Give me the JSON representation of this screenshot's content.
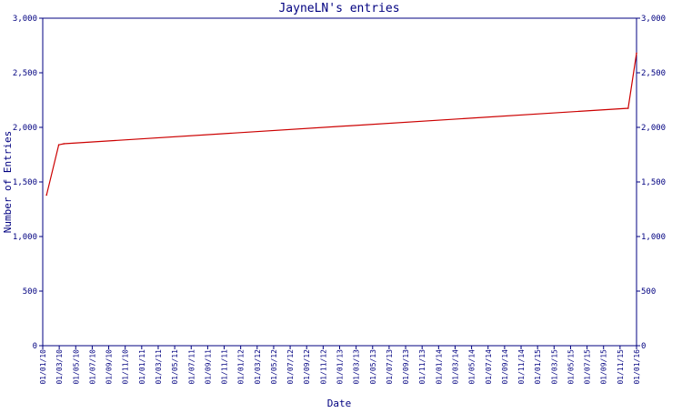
{
  "chart_data": {
    "type": "line",
    "title": "JayneLN's entries",
    "xlabel": "Date",
    "ylabel": "Number of Entries",
    "x_tick_labels": [
      "01/01/10",
      "01/03/10",
      "01/05/10",
      "01/07/10",
      "01/09/10",
      "01/11/10",
      "01/01/11",
      "01/03/11",
      "01/05/11",
      "01/07/11",
      "01/09/11",
      "01/11/11",
      "01/01/12",
      "01/03/12",
      "01/05/12",
      "01/07/12",
      "01/09/12",
      "01/11/12",
      "01/01/13",
      "01/03/13",
      "01/05/13",
      "01/07/13",
      "01/09/13",
      "01/11/13",
      "01/01/14",
      "01/03/14",
      "01/05/14",
      "01/07/14",
      "01/09/14",
      "01/11/14",
      "01/01/15",
      "01/03/15",
      "01/05/15",
      "01/07/15",
      "01/09/15",
      "01/11/15",
      "01/01/16"
    ],
    "y_tick_labels": [
      "0",
      "500",
      "1,000",
      "1,500",
      "2,000",
      "2,500",
      "3,000"
    ],
    "ylim": [
      0,
      3000
    ],
    "xlim": [
      "2010-01-01",
      "2016-01-01"
    ],
    "grid": false,
    "y_axis_both_sides": true,
    "line_color": "#cc0000",
    "axis_color": "#000080",
    "series": [
      {
        "x": [
          "2010-01-15",
          "2010-03-01",
          "2010-03-20",
          "2015-12-01",
          "2016-01-01"
        ],
        "y": [
          1380,
          1840,
          1850,
          2175,
          2680
        ]
      }
    ]
  }
}
